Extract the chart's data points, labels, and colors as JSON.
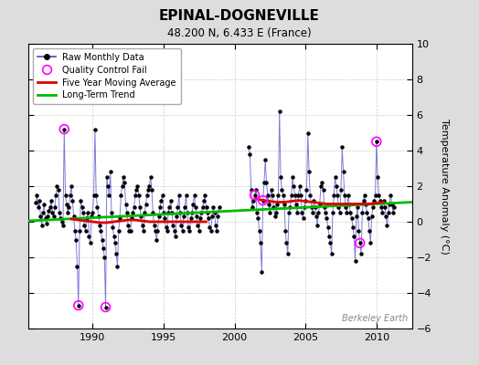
{
  "title": "EPINAL-DOGNEVILLE",
  "subtitle": "48.200 N, 6.433 E (France)",
  "ylabel": "Temperature Anomaly (°C)",
  "watermark": "Berkeley Earth",
  "ylim": [
    -6,
    10
  ],
  "xlim": [
    1985.5,
    2012.5
  ],
  "xticks": [
    1990,
    1995,
    2000,
    2005,
    2010
  ],
  "yticks": [
    -6,
    -4,
    -2,
    0,
    2,
    4,
    6,
    8,
    10
  ],
  "fig_bg_color": "#dddddd",
  "plot_bg_color": "#ffffff",
  "raw_color": "#4444cc",
  "ma_color": "#dd0000",
  "trend_color": "#00bb00",
  "qc_color": "magenta",
  "segment1": [
    [
      1986.0,
      1.1
    ],
    [
      1986.083,
      1.5
    ],
    [
      1986.167,
      0.8
    ],
    [
      1986.25,
      1.2
    ],
    [
      1986.333,
      0.3
    ],
    [
      1986.417,
      -0.2
    ],
    [
      1986.5,
      0.5
    ],
    [
      1986.583,
      1.0
    ],
    [
      1986.667,
      0.2
    ],
    [
      1986.75,
      -0.1
    ],
    [
      1986.833,
      0.3
    ],
    [
      1986.917,
      0.6
    ],
    [
      1987.0,
      0.8
    ],
    [
      1987.083,
      1.2
    ],
    [
      1987.167,
      0.5
    ],
    [
      1987.25,
      0.3
    ],
    [
      1987.333,
      0.8
    ],
    [
      1987.417,
      1.5
    ],
    [
      1987.5,
      2.0
    ],
    [
      1987.583,
      1.8
    ],
    [
      1987.667,
      0.5
    ],
    [
      1987.75,
      0.2
    ],
    [
      1987.833,
      0.0
    ],
    [
      1987.917,
      -0.2
    ],
    [
      1988.0,
      5.2
    ],
    [
      1988.083,
      1.5
    ],
    [
      1988.167,
      1.0
    ],
    [
      1988.25,
      0.5
    ],
    [
      1988.333,
      0.8
    ],
    [
      1988.417,
      1.5
    ],
    [
      1988.5,
      2.0
    ],
    [
      1988.583,
      1.2
    ],
    [
      1988.667,
      0.3
    ],
    [
      1988.75,
      -0.5
    ],
    [
      1988.833,
      -1.0
    ],
    [
      1988.917,
      -2.5
    ],
    [
      1989.0,
      -4.7
    ],
    [
      1989.083,
      -0.5
    ],
    [
      1989.167,
      1.2
    ],
    [
      1989.25,
      0.8
    ],
    [
      1989.333,
      0.5
    ],
    [
      1989.417,
      -0.2
    ],
    [
      1989.5,
      -0.5
    ],
    [
      1989.583,
      0.2
    ],
    [
      1989.667,
      0.5
    ],
    [
      1989.75,
      -0.8
    ],
    [
      1989.833,
      -1.2
    ],
    [
      1989.917,
      0.3
    ],
    [
      1990.0,
      0.5
    ],
    [
      1990.083,
      1.5
    ],
    [
      1990.167,
      5.2
    ],
    [
      1990.25,
      1.5
    ],
    [
      1990.333,
      0.8
    ],
    [
      1990.417,
      0.3
    ],
    [
      1990.5,
      -0.2
    ],
    [
      1990.583,
      -0.5
    ],
    [
      1990.667,
      -1.0
    ],
    [
      1990.75,
      -1.5
    ],
    [
      1990.833,
      -2.0
    ],
    [
      1990.917,
      -4.8
    ],
    [
      1991.0,
      2.5
    ],
    [
      1991.083,
      2.0
    ],
    [
      1991.167,
      1.5
    ],
    [
      1991.25,
      2.8
    ],
    [
      1991.333,
      0.5
    ],
    [
      1991.417,
      -0.3
    ],
    [
      1991.5,
      -0.8
    ],
    [
      1991.583,
      -1.2
    ],
    [
      1991.667,
      -1.8
    ],
    [
      1991.75,
      -2.5
    ],
    [
      1991.833,
      -0.5
    ],
    [
      1991.917,
      0.2
    ],
    [
      1992.0,
      1.5
    ],
    [
      1992.083,
      2.0
    ],
    [
      1992.167,
      2.5
    ],
    [
      1992.25,
      2.2
    ],
    [
      1992.333,
      1.0
    ],
    [
      1992.417,
      0.5
    ],
    [
      1992.5,
      -0.2
    ],
    [
      1992.583,
      -0.5
    ],
    [
      1992.667,
      -0.5
    ],
    [
      1992.75,
      0.2
    ],
    [
      1992.833,
      0.5
    ],
    [
      1992.917,
      0.8
    ],
    [
      1993.0,
      1.5
    ],
    [
      1993.083,
      1.8
    ],
    [
      1993.167,
      2.0
    ],
    [
      1993.25,
      1.5
    ],
    [
      1993.333,
      0.8
    ],
    [
      1993.417,
      0.3
    ],
    [
      1993.5,
      -0.2
    ],
    [
      1993.583,
      -0.5
    ],
    [
      1993.667,
      0.5
    ],
    [
      1993.75,
      1.0
    ],
    [
      1993.833,
      1.5
    ],
    [
      1993.917,
      1.8
    ],
    [
      1994.0,
      2.0
    ],
    [
      1994.083,
      2.5
    ],
    [
      1994.167,
      1.8
    ],
    [
      1994.25,
      0.5
    ],
    [
      1994.333,
      -0.2
    ],
    [
      1994.417,
      -0.5
    ],
    [
      1994.5,
      -1.0
    ],
    [
      1994.583,
      -0.5
    ],
    [
      1994.667,
      0.3
    ],
    [
      1994.75,
      0.8
    ],
    [
      1994.833,
      1.2
    ],
    [
      1994.917,
      1.5
    ],
    [
      1995.0,
      0.5
    ],
    [
      1995.083,
      0.2
    ],
    [
      1995.167,
      -0.3
    ],
    [
      1995.25,
      -0.5
    ],
    [
      1995.333,
      0.5
    ],
    [
      1995.417,
      0.8
    ],
    [
      1995.5,
      1.2
    ],
    [
      1995.583,
      0.5
    ],
    [
      1995.667,
      -0.2
    ],
    [
      1995.75,
      -0.5
    ],
    [
      1995.833,
      -0.8
    ],
    [
      1995.917,
      0.3
    ],
    [
      1996.0,
      0.8
    ],
    [
      1996.083,
      1.5
    ],
    [
      1996.167,
      0.5
    ],
    [
      1996.25,
      -0.2
    ],
    [
      1996.333,
      -0.5
    ],
    [
      1996.417,
      0.3
    ],
    [
      1996.5,
      0.8
    ],
    [
      1996.583,
      1.5
    ],
    [
      1996.667,
      0.5
    ],
    [
      1996.75,
      -0.3
    ],
    [
      1996.833,
      -0.5
    ],
    [
      1996.917,
      0.2
    ],
    [
      1997.0,
      0.5
    ],
    [
      1997.083,
      1.0
    ],
    [
      1997.167,
      1.5
    ],
    [
      1997.25,
      0.8
    ],
    [
      1997.333,
      0.3
    ],
    [
      1997.417,
      -0.2
    ],
    [
      1997.5,
      -0.5
    ],
    [
      1997.583,
      0.2
    ],
    [
      1997.667,
      0.5
    ],
    [
      1997.75,
      0.8
    ],
    [
      1997.833,
      1.2
    ],
    [
      1997.917,
      1.5
    ],
    [
      1998.0,
      0.8
    ],
    [
      1998.083,
      0.5
    ],
    [
      1998.167,
      0.2
    ],
    [
      1998.25,
      -0.3
    ],
    [
      1998.333,
      -0.5
    ],
    [
      1998.417,
      0.3
    ],
    [
      1998.5,
      0.8
    ],
    [
      1998.583,
      0.5
    ],
    [
      1998.667,
      -0.2
    ],
    [
      1998.75,
      -0.5
    ],
    [
      1998.833,
      0.3
    ],
    [
      1998.917,
      0.8
    ]
  ],
  "segment2": [
    [
      2001.0,
      4.2
    ],
    [
      2001.083,
      3.8
    ],
    [
      2001.167,
      1.8
    ],
    [
      2001.25,
      0.8
    ],
    [
      2001.333,
      1.2
    ],
    [
      2001.417,
      1.5
    ],
    [
      2001.5,
      1.8
    ],
    [
      2001.583,
      0.5
    ],
    [
      2001.667,
      0.2
    ],
    [
      2001.75,
      -0.5
    ],
    [
      2001.833,
      -1.2
    ],
    [
      2001.917,
      -2.8
    ],
    [
      2002.0,
      1.2
    ],
    [
      2002.083,
      2.2
    ],
    [
      2002.167,
      3.5
    ],
    [
      2002.25,
      2.2
    ],
    [
      2002.333,
      1.5
    ],
    [
      2002.417,
      1.0
    ],
    [
      2002.5,
      0.5
    ],
    [
      2002.583,
      1.8
    ],
    [
      2002.667,
      1.5
    ],
    [
      2002.75,
      0.8
    ],
    [
      2002.833,
      0.3
    ],
    [
      2002.917,
      0.5
    ],
    [
      2003.0,
      1.0
    ],
    [
      2003.083,
      1.5
    ],
    [
      2003.167,
      6.2
    ],
    [
      2003.25,
      2.5
    ],
    [
      2003.333,
      1.8
    ],
    [
      2003.417,
      1.5
    ],
    [
      2003.5,
      1.0
    ],
    [
      2003.583,
      -0.5
    ],
    [
      2003.667,
      -1.2
    ],
    [
      2003.75,
      -1.8
    ],
    [
      2003.833,
      0.5
    ],
    [
      2003.917,
      0.8
    ],
    [
      2004.0,
      1.5
    ],
    [
      2004.083,
      2.5
    ],
    [
      2004.167,
      2.0
    ],
    [
      2004.25,
      1.5
    ],
    [
      2004.333,
      1.0
    ],
    [
      2004.417,
      0.5
    ],
    [
      2004.5,
      1.5
    ],
    [
      2004.583,
      2.0
    ],
    [
      2004.667,
      1.5
    ],
    [
      2004.75,
      0.5
    ],
    [
      2004.833,
      0.2
    ],
    [
      2004.917,
      0.8
    ],
    [
      2005.0,
      1.2
    ],
    [
      2005.083,
      1.8
    ],
    [
      2005.167,
      5.0
    ],
    [
      2005.25,
      2.8
    ],
    [
      2005.333,
      1.5
    ],
    [
      2005.417,
      0.8
    ],
    [
      2005.5,
      0.5
    ],
    [
      2005.583,
      1.2
    ],
    [
      2005.667,
      0.8
    ],
    [
      2005.75,
      0.3
    ],
    [
      2005.833,
      -0.2
    ],
    [
      2005.917,
      0.5
    ],
    [
      2006.0,
      1.0
    ],
    [
      2006.083,
      2.0
    ],
    [
      2006.167,
      2.2
    ],
    [
      2006.25,
      1.8
    ],
    [
      2006.333,
      0.8
    ],
    [
      2006.417,
      0.5
    ],
    [
      2006.5,
      0.2
    ],
    [
      2006.583,
      -0.3
    ],
    [
      2006.667,
      -0.8
    ],
    [
      2006.75,
      -1.2
    ],
    [
      2006.833,
      -1.8
    ],
    [
      2006.917,
      0.5
    ],
    [
      2007.0,
      1.5
    ],
    [
      2007.083,
      2.5
    ],
    [
      2007.167,
      2.0
    ],
    [
      2007.25,
      1.5
    ],
    [
      2007.333,
      0.8
    ],
    [
      2007.417,
      0.5
    ],
    [
      2007.5,
      1.8
    ],
    [
      2007.583,
      4.2
    ],
    [
      2007.667,
      2.8
    ],
    [
      2007.75,
      1.5
    ],
    [
      2007.833,
      0.8
    ],
    [
      2007.917,
      0.5
    ],
    [
      2008.0,
      1.5
    ],
    [
      2008.083,
      1.0
    ],
    [
      2008.167,
      0.5
    ],
    [
      2008.25,
      0.2
    ],
    [
      2008.333,
      -0.3
    ],
    [
      2008.417,
      -0.8
    ],
    [
      2008.5,
      -2.2
    ],
    [
      2008.583,
      0.3
    ],
    [
      2008.667,
      0.8
    ],
    [
      2008.75,
      -0.5
    ],
    [
      2008.833,
      -1.2
    ],
    [
      2008.917,
      -1.8
    ],
    [
      2009.0,
      0.5
    ],
    [
      2009.083,
      1.2
    ],
    [
      2009.167,
      1.5
    ],
    [
      2009.25,
      1.0
    ],
    [
      2009.333,
      0.5
    ],
    [
      2009.417,
      0.2
    ],
    [
      2009.5,
      -0.5
    ],
    [
      2009.583,
      -1.2
    ],
    [
      2009.667,
      0.3
    ],
    [
      2009.75,
      0.8
    ],
    [
      2009.833,
      1.2
    ],
    [
      2009.917,
      1.5
    ],
    [
      2010.0,
      4.5
    ],
    [
      2010.083,
      2.5
    ],
    [
      2010.167,
      1.5
    ],
    [
      2010.25,
      1.2
    ],
    [
      2010.333,
      0.8
    ],
    [
      2010.417,
      0.5
    ],
    [
      2010.5,
      1.2
    ],
    [
      2010.583,
      0.8
    ],
    [
      2010.667,
      0.3
    ],
    [
      2010.75,
      -0.2
    ],
    [
      2010.833,
      0.5
    ],
    [
      2010.917,
      1.0
    ],
    [
      2011.0,
      1.5
    ],
    [
      2011.083,
      1.0
    ],
    [
      2011.167,
      0.5
    ],
    [
      2011.25,
      0.8
    ]
  ],
  "qc_fails": [
    [
      1988.0,
      5.2
    ],
    [
      1989.0,
      -4.7
    ],
    [
      1990.917,
      -4.8
    ],
    [
      2001.417,
      1.5
    ],
    [
      2002.0,
      1.2
    ],
    [
      2008.833,
      -1.2
    ],
    [
      2010.0,
      4.5
    ]
  ],
  "ma_seg1_x": [
    1988.5,
    1989.0,
    1989.5,
    1990.0,
    1990.5,
    1991.0,
    1991.5,
    1992.0,
    1992.5,
    1993.0,
    1993.5,
    1994.0,
    1994.5,
    1995.0,
    1995.5,
    1996.0,
    1996.5,
    1997.0,
    1997.5,
    1998.0
  ],
  "ma_seg1_y": [
    0.15,
    0.1,
    0.05,
    0.0,
    -0.05,
    -0.05,
    0.0,
    0.05,
    0.1,
    0.1,
    0.05,
    0.0,
    0.0,
    0.0,
    0.0,
    0.0,
    0.0,
    0.0,
    0.0,
    0.0
  ],
  "ma_seg2_x": [
    2001.5,
    2002.0,
    2002.5,
    2003.0,
    2003.5,
    2004.0,
    2004.5,
    2005.0,
    2005.5,
    2006.0,
    2006.5,
    2007.0,
    2007.5,
    2008.0,
    2008.5,
    2009.0,
    2009.5,
    2010.0,
    2010.5
  ],
  "ma_seg2_y": [
    1.3,
    1.2,
    1.15,
    1.1,
    1.1,
    1.15,
    1.2,
    1.15,
    1.1,
    1.05,
    1.0,
    1.0,
    1.0,
    1.0,
    1.0,
    1.0,
    1.0,
    1.05,
    1.1
  ],
  "trend_x": [
    1985.5,
    2012.5
  ],
  "trend_y": [
    0.05,
    1.1
  ]
}
